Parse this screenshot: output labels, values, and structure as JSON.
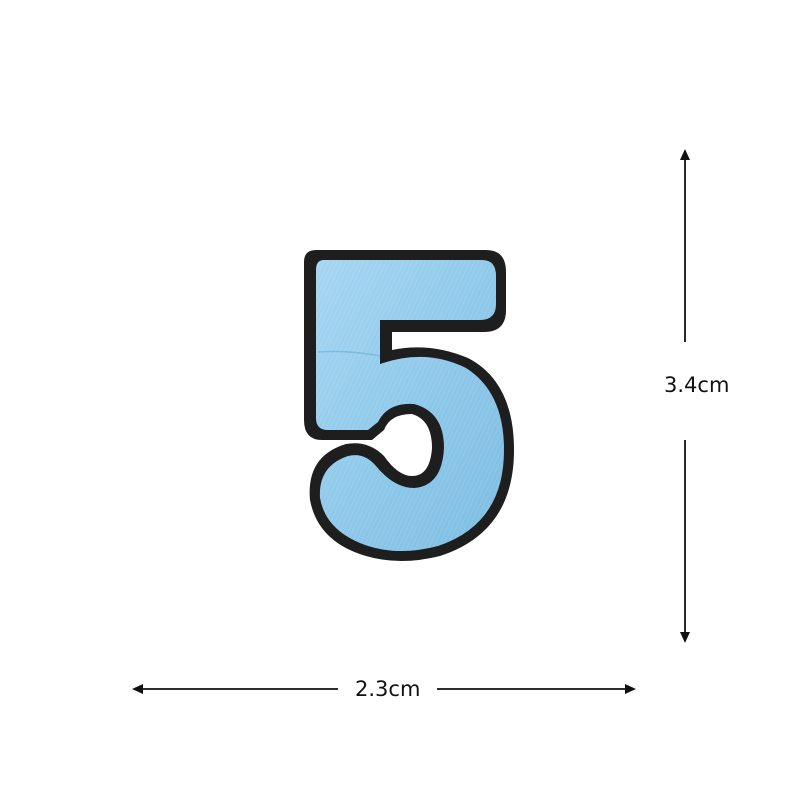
{
  "patch": {
    "character": "5",
    "fill_color": "#8fc9ea",
    "border_color": "#1e1e1e"
  },
  "dimensions": {
    "height_label": "3.4cm",
    "width_label": "2.3cm",
    "line_color": "#111111"
  }
}
